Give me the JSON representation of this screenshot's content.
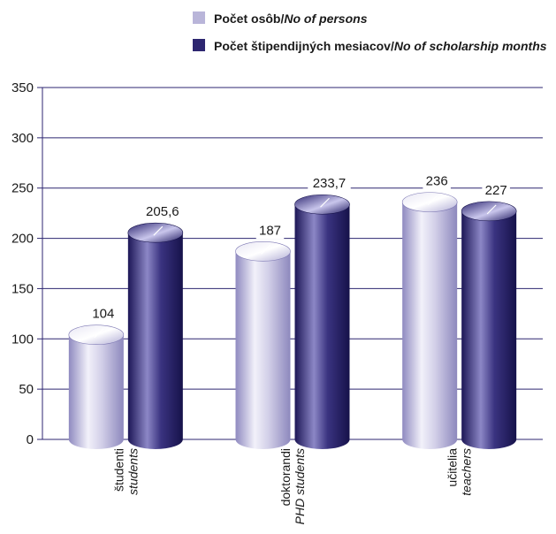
{
  "chart_data": {
    "type": "bar",
    "categories": [
      {
        "sk": "študenti",
        "en": "students"
      },
      {
        "sk": "doktorandi",
        "en": "PHD students"
      },
      {
        "sk": "učitelia",
        "en": "teachers"
      }
    ],
    "series": [
      {
        "legend_sk": "Počet osôb",
        "legend_en": "No of persons",
        "values": [
          104,
          187,
          236
        ],
        "labels": [
          "104",
          "187",
          "236"
        ],
        "color": "#b9b5d9"
      },
      {
        "legend_sk": "Počet štipendijných mesiacov",
        "legend_en": "No of scholarship months",
        "values": [
          205.6,
          233.7,
          227
        ],
        "labels": [
          "205,6",
          "233,7",
          "227"
        ],
        "color": "#2d2670"
      }
    ],
    "yticks": [
      "0",
      "50",
      "100",
      "150",
      "200",
      "250",
      "300",
      "350"
    ],
    "ylim": [
      0,
      350
    ],
    "grid": true,
    "legend_position": "top-center"
  }
}
